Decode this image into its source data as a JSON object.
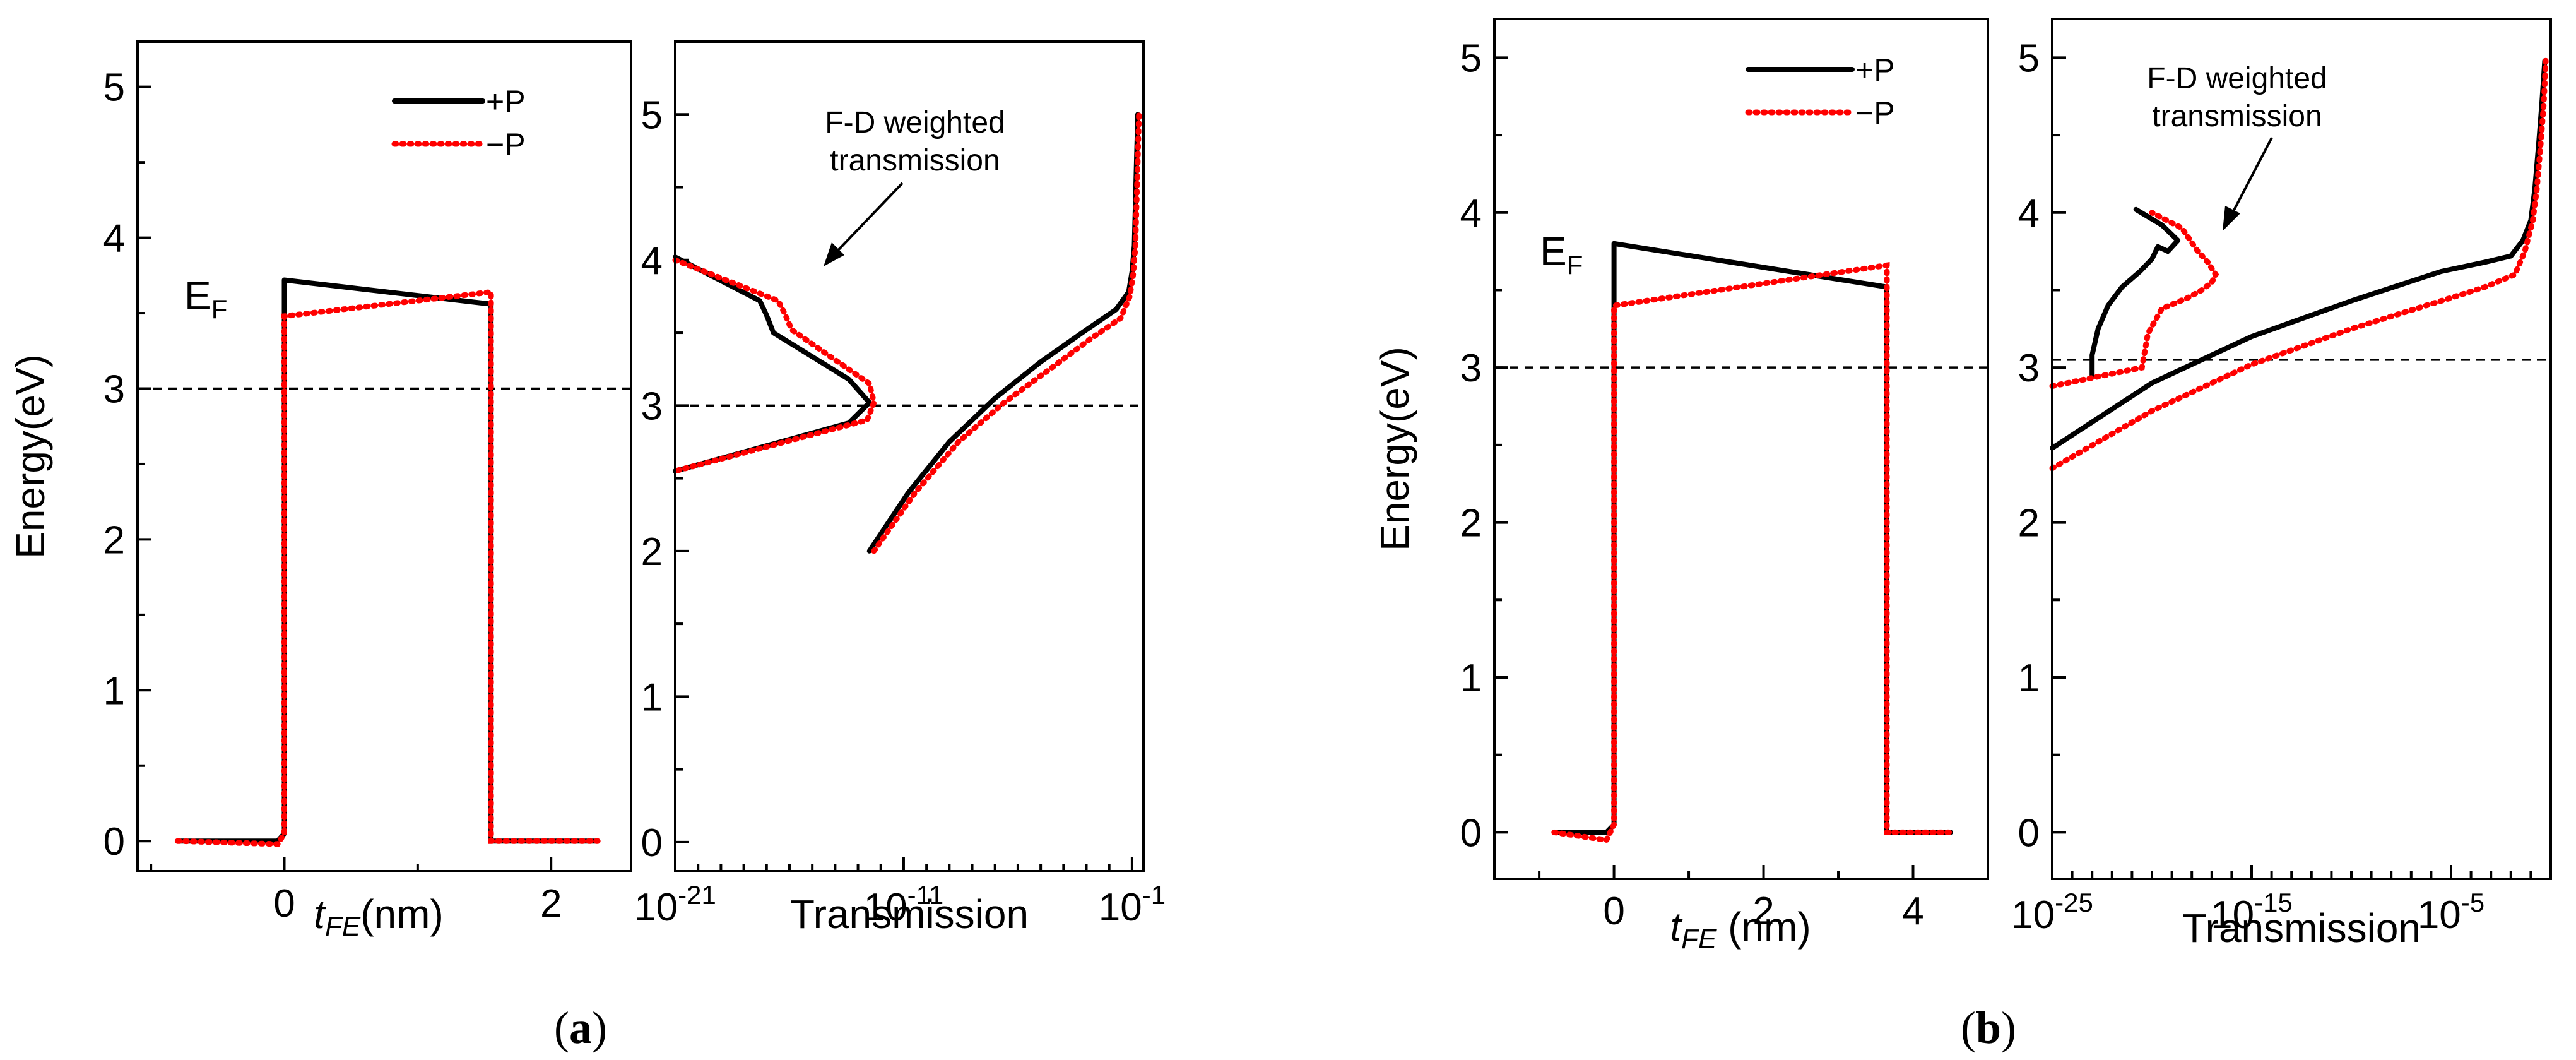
{
  "chart_data": [
    {
      "id": "a-left",
      "type": "line",
      "xlabel_italic": "t",
      "xlabel_sub": "FE",
      "xlabel_unit": "(nm)",
      "ylabel": "Energy(eV)",
      "xlim": [
        -1.1,
        2.6
      ],
      "ylim": [
        -0.2,
        5.3
      ],
      "xticks": [
        0,
        2
      ],
      "yticks": [
        0,
        1,
        2,
        3,
        4,
        5
      ],
      "ef_label": "E",
      "ef_sub": "F",
      "fermi_level": 3,
      "legend": [
        "+P",
        "−P"
      ],
      "series": [
        {
          "name": "+P",
          "x": [
            -0.8,
            -0.05,
            0,
            0,
            1.55,
            1.55,
            1.62,
            2.35
          ],
          "y": [
            0,
            0,
            0.05,
            3.72,
            3.56,
            0,
            0,
            0
          ]
        },
        {
          "name": "−P",
          "x": [
            -0.8,
            -0.05,
            0,
            0,
            1.55,
            1.55,
            1.62,
            2.35
          ],
          "y": [
            0,
            -0.02,
            0.05,
            3.48,
            3.64,
            0,
            0,
            0
          ]
        }
      ]
    },
    {
      "id": "a-right",
      "type": "line",
      "xscale": "log",
      "xlabel": "Transmission",
      "xlim_exp": [
        -21,
        -0.5
      ],
      "ylim": [
        -0.2,
        5.5
      ],
      "xtick_exps": [
        -21,
        -11,
        -1
      ],
      "yticks": [
        0,
        1,
        2,
        3,
        4,
        5
      ],
      "fermi_level": 3,
      "annotation": [
        "F-D weighted",
        "transmission"
      ],
      "series": [
        {
          "name": "+P fd",
          "xexp": [
            -21,
            -17.3,
            -17.0,
            -16.7,
            -13.4,
            -12.5,
            -13.4,
            -21
          ],
          "y": [
            4.02,
            3.72,
            3.62,
            3.5,
            3.18,
            3.02,
            2.88,
            2.55
          ]
        },
        {
          "name": "−P fd",
          "xexp": [
            -21,
            -16.5,
            -16.2,
            -15.9,
            -12.5,
            -12.3,
            -12.6,
            -21
          ],
          "y": [
            4.0,
            3.72,
            3.63,
            3.52,
            3.15,
            3.02,
            2.9,
            2.55
          ]
        },
        {
          "name": "+P",
          "xexp": [
            -12.5,
            -10.8,
            -9.0,
            -7.0,
            -5.0,
            -3.0,
            -1.7,
            -1.15,
            -1.0,
            -0.9,
            -0.85,
            -0.8,
            -0.75
          ],
          "y": [
            2.0,
            2.4,
            2.75,
            3.05,
            3.3,
            3.52,
            3.66,
            3.78,
            3.92,
            4.1,
            4.4,
            4.7,
            5.0
          ]
        },
        {
          "name": "−P",
          "xexp": [
            -12.3,
            -10.5,
            -8.6,
            -6.6,
            -4.6,
            -2.8,
            -1.5,
            -1.1,
            -0.95,
            -0.85,
            -0.8,
            -0.75,
            -0.7
          ],
          "y": [
            2.0,
            2.4,
            2.75,
            3.02,
            3.25,
            3.46,
            3.6,
            3.75,
            3.9,
            4.1,
            4.4,
            4.7,
            5.0
          ]
        }
      ]
    },
    {
      "id": "b-left",
      "type": "line",
      "xlabel_italic": "t",
      "xlabel_sub": "FE",
      "xlabel_unit": " (nm)",
      "ylabel": "Energy(eV)",
      "xlim": [
        -1.6,
        5.0
      ],
      "ylim": [
        -0.3,
        5.25
      ],
      "xticks": [
        0,
        2,
        4
      ],
      "yticks": [
        0,
        1,
        2,
        3,
        4,
        5
      ],
      "ef_label": "E",
      "ef_sub": "F",
      "fermi_level": 3,
      "legend": [
        "+P",
        "−P"
      ],
      "series": [
        {
          "name": "+P",
          "x": [
            -0.8,
            -0.1,
            0,
            0,
            3.65,
            3.65,
            3.75,
            4.5
          ],
          "y": [
            0,
            0,
            0.05,
            3.8,
            3.52,
            0,
            0,
            0
          ]
        },
        {
          "name": "−P",
          "x": [
            -0.8,
            -0.1,
            0,
            0,
            3.65,
            3.65,
            3.75,
            4.5
          ],
          "y": [
            0,
            -0.05,
            0.05,
            3.4,
            3.66,
            0,
            0,
            0
          ]
        }
      ]
    },
    {
      "id": "b-right",
      "type": "line",
      "xscale": "log",
      "xlabel": "Transmission",
      "xlim_exp": [
        -25,
        0
      ],
      "ylim": [
        -0.3,
        5.25
      ],
      "xtick_exps": [
        -25,
        -15,
        -5
      ],
      "yticks": [
        0,
        1,
        2,
        3,
        4,
        5
      ],
      "fermi_level": 3.05,
      "annotation": [
        "F-D weighted",
        "transmission"
      ],
      "series": [
        {
          "name": "+P fd",
          "xexp": [
            -23.0,
            -23.0,
            -22.7,
            -22.2,
            -21.5,
            -20.6,
            -20.0,
            -19.7,
            -19.2,
            -18.7,
            -19.5,
            -20.8
          ],
          "y": [
            2.95,
            3.08,
            3.25,
            3.4,
            3.52,
            3.62,
            3.7,
            3.78,
            3.75,
            3.82,
            3.92,
            4.02
          ]
        },
        {
          "name": "−P fd",
          "xexp": [
            -25,
            -20.5,
            -20.2,
            -19.5,
            -18.2,
            -17.5,
            -17.0,
            -16.8,
            -17.2,
            -17.7,
            -18.5,
            -20.0
          ],
          "y": [
            2.88,
            3.0,
            3.22,
            3.38,
            3.45,
            3.5,
            3.55,
            3.6,
            3.68,
            3.75,
            3.9,
            4.0
          ]
        },
        {
          "name": "+P",
          "xexp": [
            -25,
            -20.0,
            -15.0,
            -10.0,
            -5.5,
            -3.3,
            -2.0,
            -1.4,
            -1.0,
            -0.8,
            -0.6,
            -0.45,
            -0.3
          ],
          "y": [
            2.48,
            2.9,
            3.2,
            3.43,
            3.62,
            3.68,
            3.72,
            3.82,
            3.95,
            4.15,
            4.45,
            4.7,
            4.98
          ]
        },
        {
          "name": "−P",
          "xexp": [
            -25,
            -20.0,
            -15.0,
            -10.0,
            -5.0,
            -3.3,
            -1.8,
            -1.3,
            -0.9,
            -0.7,
            -0.5,
            -0.35,
            -0.25
          ],
          "y": [
            2.35,
            2.72,
            3.02,
            3.25,
            3.45,
            3.52,
            3.6,
            3.75,
            3.95,
            4.15,
            4.45,
            4.7,
            4.98
          ]
        }
      ]
    }
  ],
  "captions": {
    "a": "a",
    "b": "b",
    "open": "(",
    "close": ")"
  }
}
